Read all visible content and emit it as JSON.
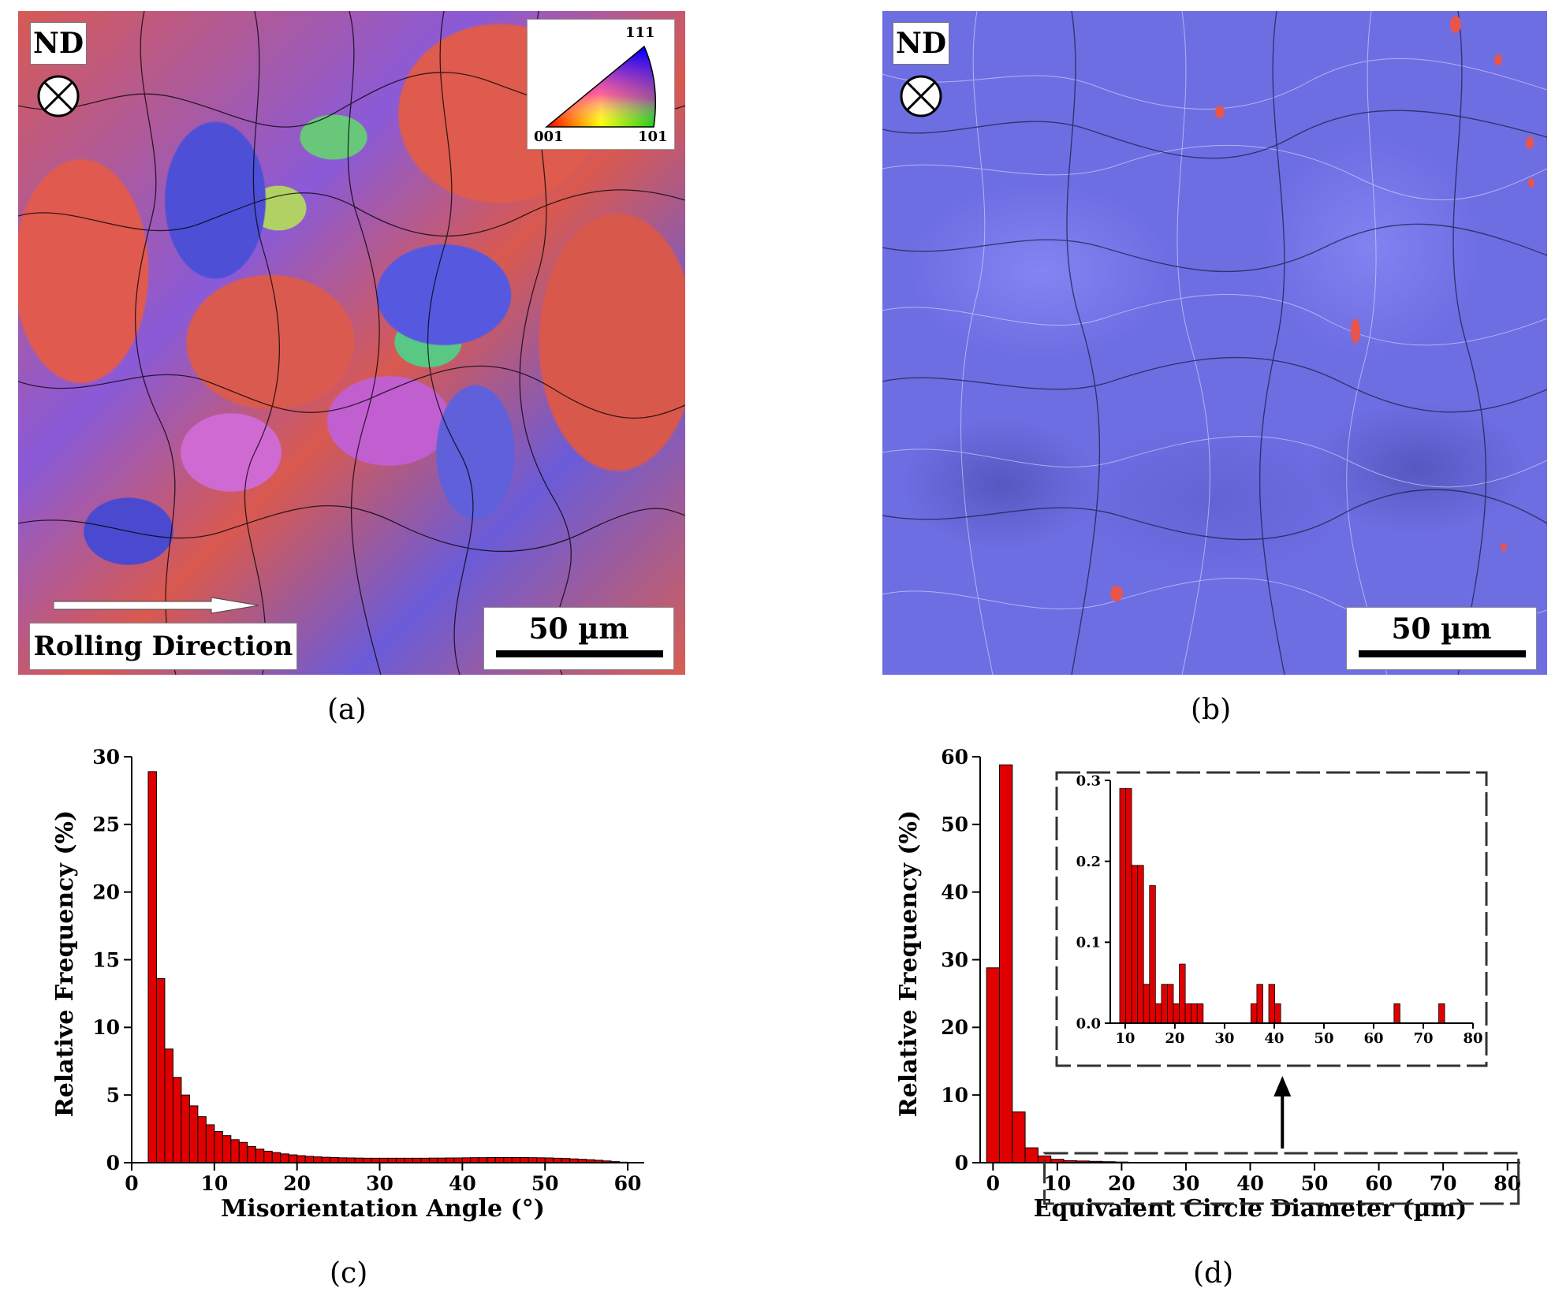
{
  "panel_a": {
    "label": "(a)",
    "nd_label": "ND",
    "rolling_direction_label": "Rolling Direction",
    "scale_bar_label": "50 µm",
    "ipf_key": {
      "top": "111",
      "left": "001",
      "right": "101"
    }
  },
  "panel_b": {
    "label": "(b)",
    "nd_label": "ND",
    "scale_bar_label": "50 µm"
  },
  "panel_c": {
    "label": "(c)"
  },
  "panel_d": {
    "label": "(d)"
  },
  "colors": {
    "bar": "#e00000",
    "bar_edge": "#000000",
    "phase_blue": "#6e6ee3",
    "phase_red": "#e8554d"
  },
  "chart_data": [
    {
      "id": "c",
      "type": "bar",
      "title": "",
      "xlabel": "Misorientation Angle (°)",
      "ylabel": "Relative Frequency (%)",
      "xlim": [
        0,
        62
      ],
      "ylim": [
        0,
        30
      ],
      "xticks": [
        "0",
        "10",
        "20",
        "30",
        "40",
        "50",
        "60"
      ],
      "yticks": [
        "0",
        "5",
        "10",
        "15",
        "20",
        "25",
        "30"
      ],
      "bin_start": 2,
      "bin_width": 1,
      "values": [
        28.9,
        13.6,
        8.4,
        6.3,
        5.0,
        4.2,
        3.4,
        2.8,
        2.3,
        2.0,
        1.7,
        1.5,
        1.2,
        1.0,
        0.85,
        0.75,
        0.65,
        0.58,
        0.52,
        0.47,
        0.43,
        0.4,
        0.38,
        0.36,
        0.35,
        0.34,
        0.33,
        0.33,
        0.33,
        0.33,
        0.33,
        0.33,
        0.33,
        0.33,
        0.34,
        0.34,
        0.35,
        0.35,
        0.36,
        0.37,
        0.37,
        0.38,
        0.38,
        0.38,
        0.38,
        0.38,
        0.37,
        0.36,
        0.35,
        0.33,
        0.31,
        0.28,
        0.25,
        0.22,
        0.18,
        0.13,
        0.08,
        0.04,
        0.02
      ]
    },
    {
      "id": "d",
      "type": "bar",
      "title": "",
      "xlabel": "Equivalent Circle Diameter (µm)",
      "ylabel": "Relative Frequency (%)",
      "xlim": [
        -2,
        82
      ],
      "ylim": [
        0,
        60
      ],
      "xticks": [
        "0",
        "10",
        "20",
        "30",
        "40",
        "50",
        "60",
        "70",
        "80"
      ],
      "yticks": [
        "0",
        "10",
        "20",
        "30",
        "40",
        "50",
        "60"
      ],
      "bin_start": -1,
      "bin_width": 2,
      "values": [
        28.8,
        58.8,
        7.5,
        2.2,
        1.0,
        0.5,
        0.3,
        0.25,
        0.2,
        0.15,
        0.1,
        0.05
      ],
      "highlight_range": [
        8,
        80
      ]
    },
    {
      "id": "d-inset",
      "type": "bar",
      "title": "",
      "xlim": [
        7,
        80
      ],
      "ylim": [
        0,
        0.3
      ],
      "xticks": [
        "10",
        "20",
        "30",
        "40",
        "50",
        "60",
        "70",
        "80"
      ],
      "yticks": [
        "0.0",
        "0.1",
        "0.2",
        "0.3"
      ],
      "bin_width": 1.2,
      "x": [
        9.5,
        10.7,
        11.9,
        13.1,
        14.3,
        15.5,
        16.7,
        17.9,
        19.1,
        20.3,
        21.5,
        22.7,
        23.9,
        25.1,
        26.3,
        27.5,
        28.7,
        29.9,
        31.1,
        32.3,
        35.9,
        37.1,
        38.3,
        39.5,
        40.7,
        41.9,
        43.1,
        64.7,
        73.7
      ],
      "values": [
        0.29,
        0.29,
        0.195,
        0.195,
        0.048,
        0.17,
        0.024,
        0.048,
        0.048,
        0.024,
        0.073,
        0.024,
        0.024,
        0.024,
        0.0,
        0.0,
        0.0,
        0.0,
        0.0,
        0.0,
        0.024,
        0.048,
        0.0,
        0.048,
        0.024,
        0.0,
        0.0,
        0.024,
        0.024
      ]
    }
  ]
}
